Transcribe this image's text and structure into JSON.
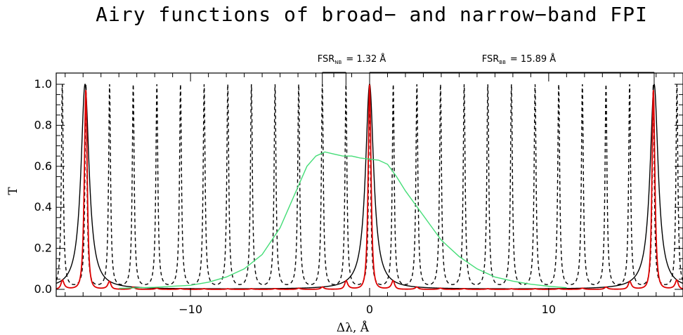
{
  "chart_data": {
    "type": "line",
    "title": "Airy functions of broad− and narrow−band FPI",
    "xlabel": "Δλ, Å",
    "ylabel": "T",
    "xlim": [
      -17.5,
      17.5
    ],
    "ylim": [
      -0.02,
      1.05
    ],
    "x_ticks": [
      -10,
      0,
      10
    ],
    "x_tick_labels": [
      "−10",
      "0",
      "10"
    ],
    "y_ticks": [
      0.0,
      0.2,
      0.4,
      0.6,
      0.8,
      1.0
    ],
    "y_tick_labels": [
      "0.0",
      "0.2",
      "0.4",
      "0.6",
      "0.8",
      "1.0"
    ],
    "series": [
      {
        "style": "solid",
        "color": "#000000",
        "model": "airy",
        "period": 15.89,
        "peaks": [
          -15.89,
          0.0,
          15.89
        ],
        "peak_value": 1.0,
        "fwhm": 0.55
      },
      {
        "style": "dashed",
        "color": "#000000",
        "model": "airy",
        "period": 1.32,
        "peaks": [
          -17.16,
          -15.84,
          -14.52,
          -13.2,
          -11.88,
          -10.56,
          -9.24,
          -7.92,
          -6.6,
          -5.28,
          -3.96,
          -2.64,
          -1.32,
          0.0,
          1.32,
          2.64,
          3.96,
          5.28,
          6.6,
          7.92,
          9.24,
          10.56,
          11.88,
          13.2,
          14.52,
          15.84,
          17.16
        ],
        "peak_value": 1.0,
        "fwhm": 0.13
      },
      {
        "style": "solid",
        "color": "#dd0000",
        "model": "product",
        "peaks": [
          -15.84,
          -14.52,
          -1.32,
          0.0,
          1.32,
          14.52,
          15.84
        ],
        "peak_values": [
          0.99,
          0.05,
          0.06,
          1.0,
          0.06,
          0.05,
          0.99
        ]
      },
      {
        "style": "solid",
        "color": "#44dd77",
        "model": "profile",
        "x": [
          -14,
          -12,
          -10,
          -9,
          -8,
          -7,
          -6,
          -5,
          -4.5,
          -4,
          -3.5,
          -3,
          -2.5,
          -2,
          -1.5,
          -1,
          -0.5,
          0,
          0.5,
          1,
          1.5,
          2,
          2.5,
          3,
          3.5,
          4,
          5,
          6,
          7,
          8,
          9,
          10,
          11
        ],
        "y": [
          0.005,
          0.01,
          0.02,
          0.035,
          0.06,
          0.1,
          0.17,
          0.3,
          0.4,
          0.5,
          0.6,
          0.65,
          0.67,
          0.66,
          0.65,
          0.65,
          0.64,
          0.635,
          0.63,
          0.61,
          0.55,
          0.48,
          0.42,
          0.36,
          0.3,
          0.24,
          0.16,
          0.1,
          0.06,
          0.04,
          0.025,
          0.015,
          0.008
        ]
      }
    ],
    "annotations": [
      {
        "prefix": "FSR",
        "subscript": "NB",
        "value": "= 1.32 Å",
        "from": -2.64,
        "to": -1.32
      },
      {
        "prefix": "FSR",
        "subscript": "BB",
        "value": "= 15.89 Å",
        "from": 0.0,
        "to": 15.89
      }
    ]
  }
}
